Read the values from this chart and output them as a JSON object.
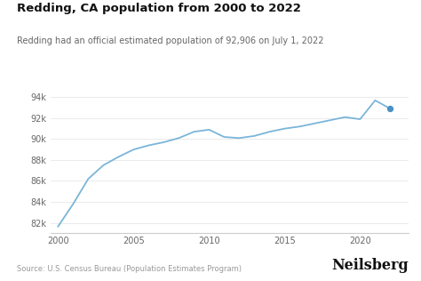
{
  "title": "Redding, CA population from 2000 to 2022",
  "subtitle": "Redding had an official estimated population of 92,906 on July 1, 2022",
  "source": "Source: U.S. Census Bureau (Population Estimates Program)",
  "brand": "Neilsberg",
  "years": [
    2000,
    2001,
    2002,
    2003,
    2004,
    2005,
    2006,
    2007,
    2008,
    2009,
    2010,
    2011,
    2012,
    2013,
    2014,
    2015,
    2016,
    2017,
    2018,
    2019,
    2020,
    2021,
    2022
  ],
  "population": [
    81650,
    83800,
    86200,
    87500,
    88300,
    89000,
    89400,
    89700,
    90100,
    90700,
    90900,
    90200,
    90100,
    90300,
    90700,
    91000,
    91200,
    91500,
    91800,
    92100,
    91900,
    93700,
    92906
  ],
  "line_color": "#7ab5d8",
  "dot_color": "#4a90c4",
  "background_color": "#ffffff",
  "grid_color": "#e8e8e8",
  "title_fontsize": 9.5,
  "subtitle_fontsize": 7.0,
  "axis_fontsize": 7.0,
  "source_fontsize": 6.0,
  "brand_fontsize": 11.5,
  "ylim": [
    81000,
    94700
  ],
  "yticks": [
    82000,
    84000,
    86000,
    88000,
    90000,
    92000,
    94000
  ],
  "ytick_labels": [
    "82k",
    "84k",
    "86k",
    "88k",
    "90k",
    "92k",
    "94k"
  ],
  "xticks": [
    2000,
    2005,
    2010,
    2015,
    2020
  ],
  "xlim": [
    1999.5,
    2023.2
  ]
}
